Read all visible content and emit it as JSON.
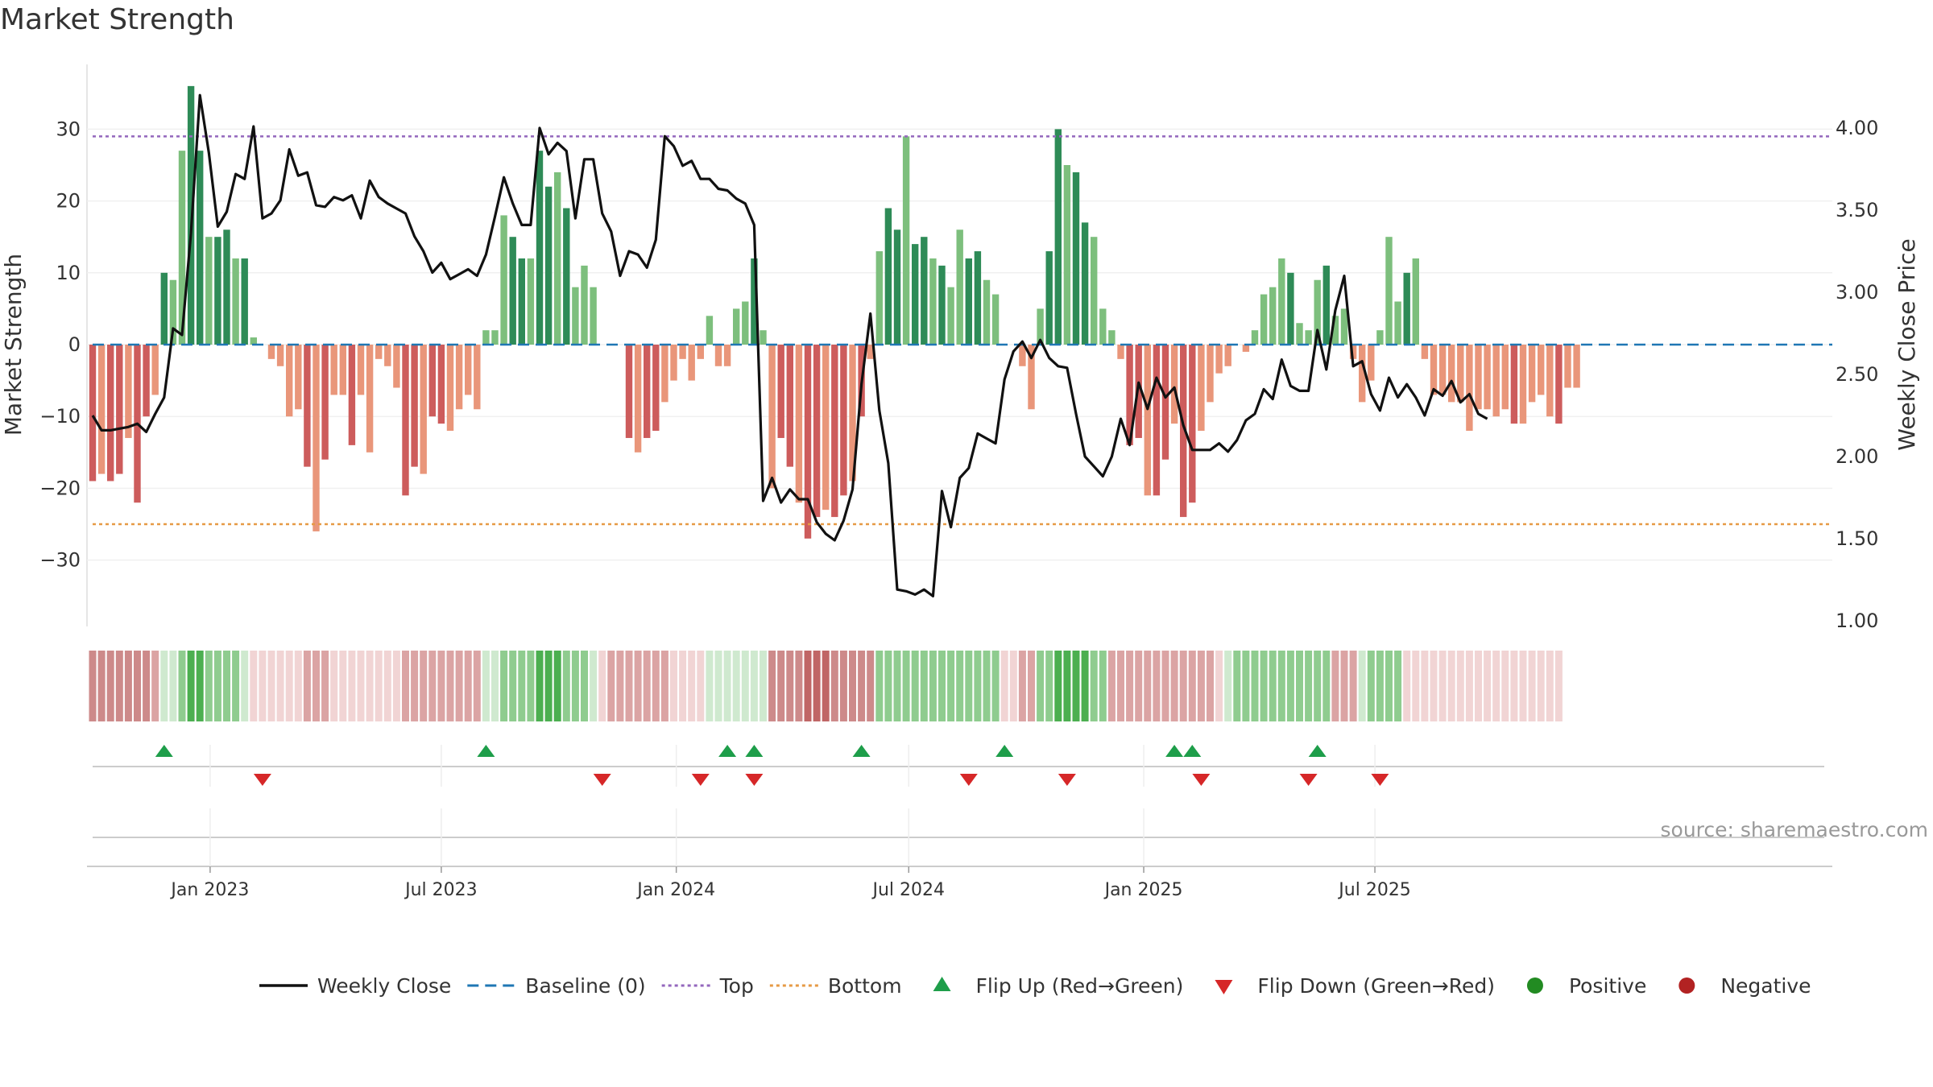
{
  "title": "Market Strength",
  "source": "source: sharemaestro.com",
  "colors": {
    "pos_dark": "#2e8b57",
    "pos_light": "#7dbf7d",
    "neg_dark": "#cd5c5c",
    "neg_light": "#e9967a",
    "line": "#111111",
    "baseline": "#1f77b4",
    "top": "#9467bd",
    "bottom": "#e69a45",
    "flip_up": "#1e9e4a",
    "flip_down": "#d62728",
    "positive": "#228b22",
    "negative": "#b22222"
  },
  "legend": [
    {
      "label": "Weekly Close",
      "kind": "line",
      "color": "#111111"
    },
    {
      "label": "Baseline (0)",
      "kind": "dash",
      "color": "#1f77b4"
    },
    {
      "label": "Top",
      "kind": "dot",
      "color": "#9467bd"
    },
    {
      "label": "Bottom",
      "kind": "dot",
      "color": "#e69a45"
    },
    {
      "label": "Flip Up (Red→Green)",
      "kind": "up",
      "color": "#1e9e4a"
    },
    {
      "label": "Flip Down (Green→Red)",
      "kind": "down",
      "color": "#d62728"
    },
    {
      "label": "Positive",
      "kind": "circle",
      "color": "#228b22"
    },
    {
      "label": "Negative",
      "kind": "circle",
      "color": "#b22222"
    }
  ],
  "chart_data": {
    "type": "bar",
    "title": "Market Strength",
    "ylabel_left": "Market Strength",
    "ylabel_right": "Weekly Close Price",
    "ylim_left": [
      -39,
      39
    ],
    "yticks_left": [
      30,
      20,
      10,
      0,
      -10,
      -20,
      -30
    ],
    "ylim_right": [
      1.0,
      4.4
    ],
    "yticks_right": [
      "4.00",
      "3.50",
      "3.00",
      "2.50",
      "2.00",
      "1.50",
      "1.00"
    ],
    "x_start": "2022-10-01",
    "week_days": 7,
    "x_ticks": [
      {
        "label": "Jan 2023",
        "date": "2023-01-01"
      },
      {
        "label": "Jul 2023",
        "date": "2023-07-01"
      },
      {
        "label": "Jan 2024",
        "date": "2024-01-01"
      },
      {
        "label": "Jul 2024",
        "date": "2024-07-01"
      },
      {
        "label": "Jan 2025",
        "date": "2025-01-01"
      },
      {
        "label": "Jul 2025",
        "date": "2025-07-01"
      }
    ],
    "top_line": 29,
    "bottom_line": -25,
    "strength": [
      -19,
      -18,
      -19,
      -18,
      -13,
      -22,
      -10,
      -7,
      10,
      9,
      27,
      36,
      27,
      15,
      15,
      16,
      12,
      12,
      1,
      0,
      -2,
      -3,
      -10,
      -9,
      -17,
      -26,
      -16,
      -7,
      -7,
      -14,
      -7,
      -15,
      -2,
      -3,
      -6,
      -21,
      -17,
      -18,
      -10,
      -11,
      -12,
      -9,
      -7,
      -9,
      2,
      2,
      18,
      15,
      12,
      12,
      27,
      22,
      24,
      19,
      8,
      11,
      8,
      0,
      0,
      0,
      -13,
      -15,
      -13,
      -12,
      -8,
      -5,
      -2,
      -5,
      -2,
      4,
      -3,
      -3,
      5,
      6,
      12,
      2,
      -20,
      -13,
      -17,
      -22,
      -27,
      -24,
      -23,
      -24,
      -21,
      -19,
      -10,
      -2,
      13,
      19,
      16,
      29,
      14,
      15,
      12,
      11,
      8,
      16,
      12,
      13,
      9,
      7,
      0,
      0,
      -3,
      -9,
      5,
      13,
      30,
      25,
      24,
      17,
      15,
      5,
      2,
      -2,
      -14,
      -13,
      -21,
      -21,
      -16,
      -11,
      -24,
      -22,
      -12,
      -8,
      -4,
      -3,
      0,
      -1,
      2,
      7,
      8,
      12,
      10,
      3,
      2,
      9,
      11,
      4,
      5,
      -2,
      -8,
      -5,
      2,
      15,
      6,
      10,
      12,
      -2,
      -7,
      -7,
      -8,
      -8,
      -12,
      -9,
      -9,
      -10,
      -9,
      -11,
      -11,
      -8,
      -7,
      -10,
      -11,
      -6,
      -6
    ],
    "weekly_close": [
      2.25,
      2.16,
      2.16,
      2.17,
      2.18,
      2.2,
      2.15,
      2.26,
      2.36,
      2.78,
      2.74,
      3.36,
      4.2,
      3.85,
      3.4,
      3.49,
      3.72,
      3.69,
      4.01,
      3.45,
      3.48,
      3.56,
      3.87,
      3.71,
      3.73,
      3.53,
      3.52,
      3.58,
      3.56,
      3.59,
      3.45,
      3.68,
      3.58,
      3.54,
      3.51,
      3.48,
      3.34,
      3.25,
      3.12,
      3.18,
      3.08,
      3.11,
      3.14,
      3.1,
      3.23,
      3.46,
      3.7,
      3.54,
      3.41,
      3.41,
      4.0,
      3.84,
      3.91,
      3.86,
      3.45,
      3.81,
      3.81,
      3.48,
      3.37,
      3.1,
      3.25,
      3.23,
      3.15,
      3.32,
      3.95,
      3.89,
      3.77,
      3.8,
      3.69,
      3.69,
      3.63,
      3.62,
      3.57,
      3.54,
      3.41,
      1.73,
      1.87,
      1.72,
      1.8,
      1.74,
      1.74,
      1.6,
      1.53,
      1.49,
      1.61,
      1.8,
      2.44,
      2.87,
      2.28,
      1.96,
      1.19,
      1.18,
      1.16,
      1.19,
      1.15,
      1.79,
      1.57,
      1.87,
      1.93,
      2.14,
      2.11,
      2.08,
      2.47,
      2.64,
      2.7,
      2.6,
      2.71,
      2.6,
      2.55,
      2.54,
      2.26,
      2.0,
      1.94,
      1.88,
      2.0,
      2.23,
      2.07,
      2.45,
      2.29,
      2.48,
      2.36,
      2.42,
      2.19,
      2.04,
      2.04,
      2.04,
      2.08,
      2.03,
      2.1,
      2.22,
      2.26,
      2.41,
      2.35,
      2.59,
      2.43,
      2.4,
      2.4,
      2.77,
      2.53,
      2.89,
      3.1,
      2.55,
      2.58,
      2.38,
      2.28,
      2.48,
      2.36,
      2.44,
      2.36,
      2.25,
      2.41,
      2.37,
      2.46,
      2.33,
      2.38,
      2.26,
      2.23
    ],
    "heat_levels": [
      -3,
      -3,
      -3,
      -3,
      -3,
      -3,
      -3,
      -2,
      1,
      1,
      2,
      3,
      3,
      2,
      2,
      2,
      2,
      1,
      -1,
      -1,
      -1,
      -1,
      -1,
      -1,
      -2,
      -2,
      -2,
      -1,
      -1,
      -1,
      -1,
      -1,
      -1,
      -1,
      -1,
      -2,
      -2,
      -2,
      -2,
      -2,
      -2,
      -2,
      -2,
      -2,
      1,
      1,
      2,
      2,
      2,
      2,
      3,
      3,
      3,
      2,
      2,
      2,
      1,
      -1,
      -2,
      -2,
      -2,
      -2,
      -2,
      -2,
      -2,
      -1,
      -1,
      -1,
      -1,
      1,
      1,
      1,
      1,
      1,
      1,
      1,
      -3,
      -3,
      -3,
      -3,
      -4,
      -4,
      -4,
      -3,
      -3,
      -3,
      -3,
      -3,
      2,
      2,
      2,
      2,
      2,
      2,
      2,
      2,
      2,
      2,
      2,
      2,
      2,
      2,
      -1,
      -1,
      -2,
      -2,
      2,
      2,
      3,
      3,
      3,
      3,
      2,
      2,
      -2,
      -2,
      -2,
      -2,
      -2,
      -2,
      -2,
      -2,
      -2,
      -2,
      -2,
      -2,
      -1,
      1,
      2,
      2,
      2,
      2,
      2,
      2,
      2,
      2,
      2,
      2,
      2,
      -2,
      -2,
      -2,
      1,
      2,
      2,
      2,
      2,
      -1,
      -1,
      -1,
      -1,
      -1,
      -1,
      -1,
      -1,
      -1,
      -1,
      -1,
      -1,
      -1,
      -1,
      -1,
      -1,
      -1,
      -1
    ],
    "flip_up_weeks": [
      8,
      44,
      71,
      74,
      86,
      102,
      121,
      123,
      137
    ],
    "flip_down_weeks": [
      19,
      57,
      68,
      74,
      98,
      109,
      124,
      136,
      144
    ]
  }
}
